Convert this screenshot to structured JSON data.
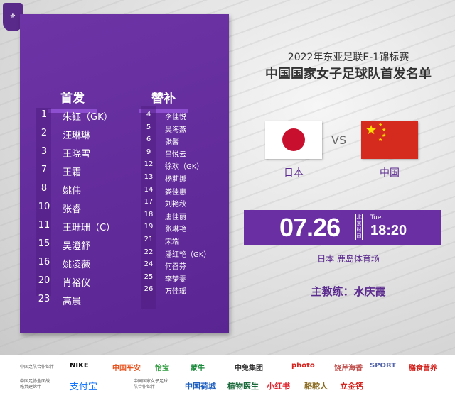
{
  "logo": "CFA",
  "lineup": {
    "starters_label": "首发",
    "subs_label": "替补",
    "starters": [
      {
        "num": "1",
        "name": "朱钰（GK）"
      },
      {
        "num": "2",
        "name": "汪琳琳"
      },
      {
        "num": "3",
        "name": "王晓雪"
      },
      {
        "num": "7",
        "name": "王霜"
      },
      {
        "num": "8",
        "name": "姚伟"
      },
      {
        "num": "10",
        "name": "张睿"
      },
      {
        "num": "11",
        "name": "王珊珊（C）"
      },
      {
        "num": "15",
        "name": "吴澄舒"
      },
      {
        "num": "16",
        "name": "姚凌薇"
      },
      {
        "num": "20",
        "name": "肖裕仪"
      },
      {
        "num": "23",
        "name": "高晨"
      }
    ],
    "subs": [
      {
        "num": "4",
        "name": "李佳悦"
      },
      {
        "num": "5",
        "name": "吴海燕"
      },
      {
        "num": "6",
        "name": "张馨"
      },
      {
        "num": "9",
        "name": "吕悦云"
      },
      {
        "num": "12",
        "name": "徐欢（GK）"
      },
      {
        "num": "13",
        "name": "杨莉娜"
      },
      {
        "num": "14",
        "name": "娄佳惠"
      },
      {
        "num": "17",
        "name": "刘艳秋"
      },
      {
        "num": "18",
        "name": "唐佳丽"
      },
      {
        "num": "19",
        "name": "张琳艳"
      },
      {
        "num": "21",
        "name": "宋端"
      },
      {
        "num": "22",
        "name": "潘红艳（GK）"
      },
      {
        "num": "24",
        "name": "何召芬"
      },
      {
        "num": "25",
        "name": "李梦雯"
      },
      {
        "num": "26",
        "name": "万佳瑶"
      }
    ]
  },
  "match": {
    "event": "2022年东亚足联E-1锦标赛",
    "title": "中国国家女子足球队首发名单",
    "home": "日本",
    "away": "中国",
    "vs": "VS",
    "date": "07.26",
    "tz": "北京时间",
    "weekday": "Tue.",
    "time": "18:20",
    "venue": "日本 鹿岛体育场",
    "coach": "主教练：水庆霞"
  },
  "colors": {
    "purple": "#6a2fa2",
    "japan_red": "#c8102e",
    "china_red": "#d52b1e"
  },
  "sponsors": {
    "row1_label": "中国之队合作伙伴",
    "row1": [
      "NIKE",
      "中国平安",
      "怡宝",
      "蒙牛",
      "中免集团",
      "photo",
      "饶芹海香",
      "SPORT",
      "膳食营养"
    ],
    "row2_label": "中国足协全面战略共建伙伴",
    "row2a": [
      "支付宝"
    ],
    "row2_label2": "中国国家女子足球队合作伙伴",
    "row2b": [
      "中国荷城",
      "植物医生",
      "小红书",
      "骆驼人",
      "立金钙"
    ]
  }
}
